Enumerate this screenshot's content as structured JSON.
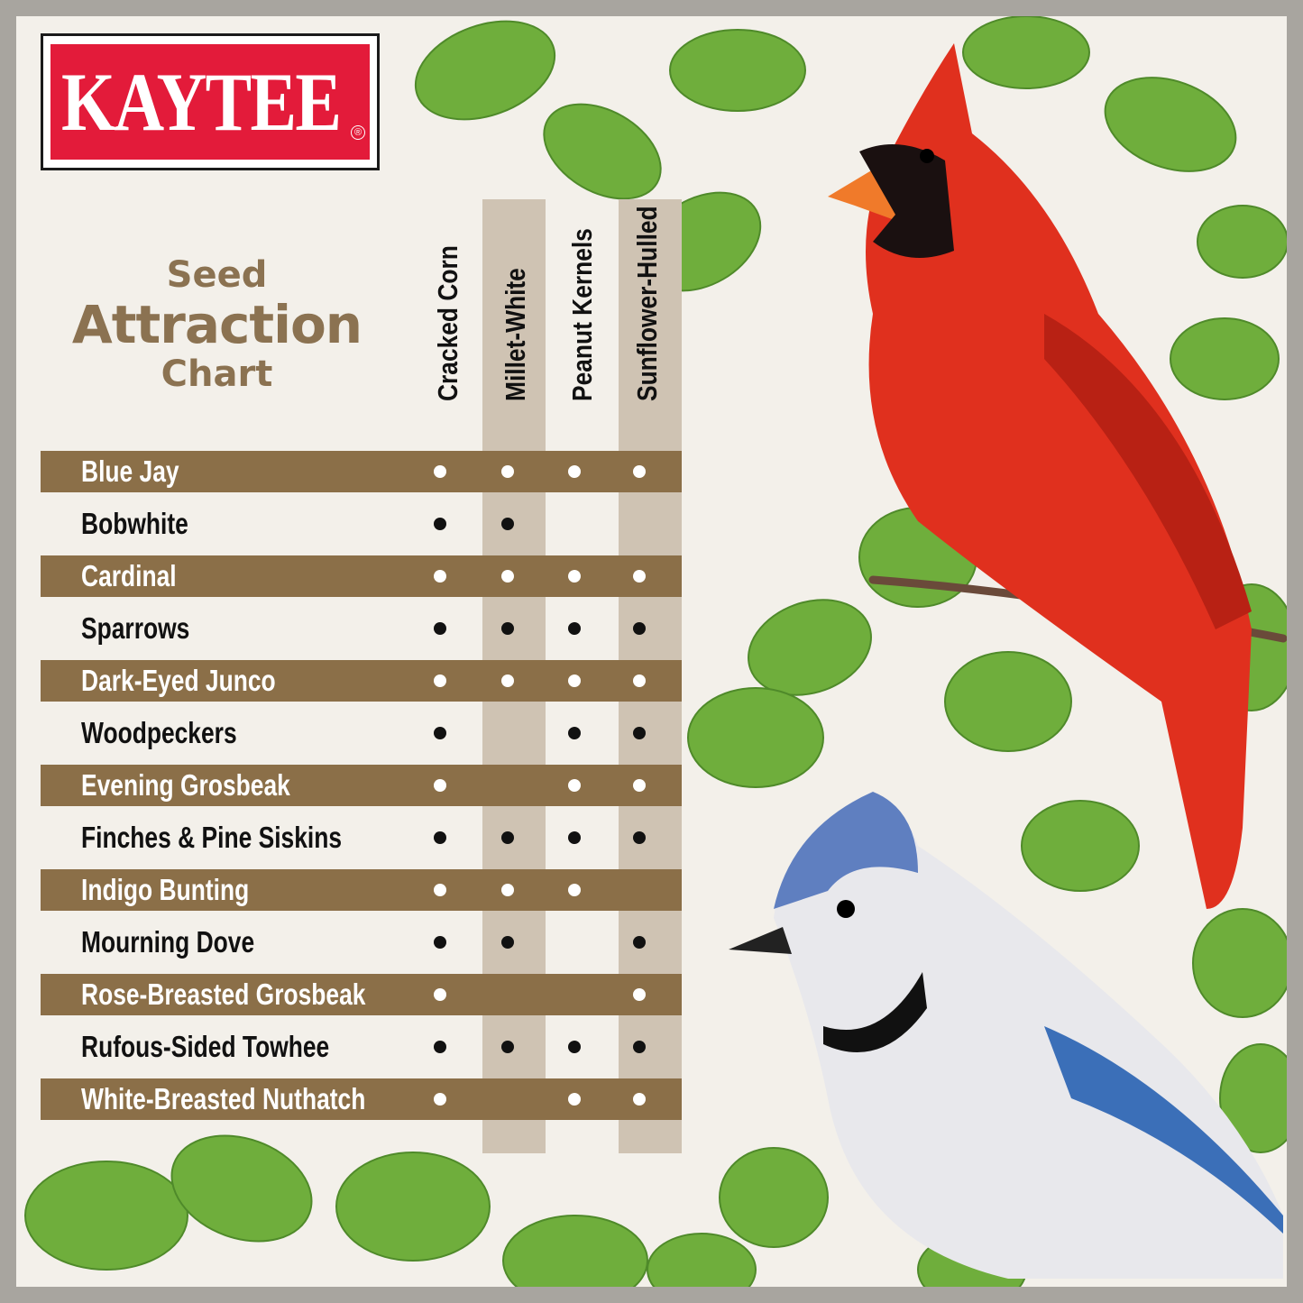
{
  "brand": {
    "logo_text": "KAYTEE",
    "registered": "®",
    "color": "#e31b3a"
  },
  "title": {
    "line1": "Seed",
    "line2": "Attraction",
    "line3": "Chart"
  },
  "colors": {
    "band": "#8b6f48",
    "column_shade": "#cfc3b3",
    "title": "#8b7251"
  },
  "chart_data": {
    "type": "table",
    "title": "Seed Attraction Chart",
    "columns": [
      "Cracked Corn",
      "Millet-White",
      "Peanut Kernels",
      "Sunflower-Hulled"
    ],
    "rows": [
      {
        "bird": "Blue Jay",
        "attracts": [
          true,
          true,
          true,
          true
        ]
      },
      {
        "bird": "Bobwhite",
        "attracts": [
          true,
          true,
          false,
          false
        ]
      },
      {
        "bird": "Cardinal",
        "attracts": [
          true,
          true,
          true,
          true
        ]
      },
      {
        "bird": "Sparrows",
        "attracts": [
          true,
          true,
          true,
          true
        ]
      },
      {
        "bird": "Dark-Eyed Junco",
        "attracts": [
          true,
          true,
          true,
          true
        ]
      },
      {
        "bird": "Woodpeckers",
        "attracts": [
          true,
          false,
          true,
          true
        ]
      },
      {
        "bird": "Evening Grosbeak",
        "attracts": [
          true,
          false,
          true,
          true
        ]
      },
      {
        "bird": "Finches & Pine Siskins",
        "attracts": [
          true,
          true,
          true,
          true
        ]
      },
      {
        "bird": "Indigo Bunting",
        "attracts": [
          true,
          true,
          true,
          false
        ]
      },
      {
        "bird": "Mourning Dove",
        "attracts": [
          true,
          true,
          false,
          true
        ]
      },
      {
        "bird": "Rose-Breasted Grosbeak",
        "attracts": [
          true,
          false,
          false,
          true
        ]
      },
      {
        "bird": "Rufous-Sided Towhee",
        "attracts": [
          true,
          true,
          true,
          true
        ]
      },
      {
        "bird": "White-Breasted Nuthatch",
        "attracts": [
          true,
          false,
          true,
          true
        ]
      }
    ]
  }
}
